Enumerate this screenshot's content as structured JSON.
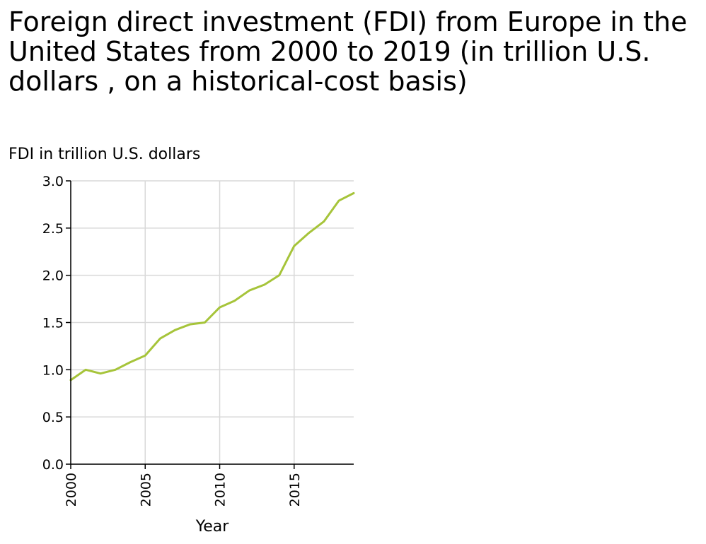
{
  "chart_data": {
    "type": "line",
    "title": "Foreign direct investment (FDI) from Europe in the United States from 2000 to 2019 (in trillion U.S. dollars , on a historical-cost basis)",
    "xlabel": "Year",
    "ylabel": "FDI in trillion U.S. dollars",
    "x": [
      2000,
      2001,
      2002,
      2003,
      2004,
      2005,
      2006,
      2007,
      2008,
      2009,
      2010,
      2011,
      2012,
      2013,
      2014,
      2015,
      2016,
      2017,
      2018,
      2019
    ],
    "series": [
      {
        "values": [
          0.89,
          1.0,
          0.96,
          1.0,
          1.08,
          1.15,
          1.33,
          1.42,
          1.48,
          1.5,
          1.66,
          1.73,
          1.84,
          1.9,
          2.0,
          2.31,
          2.45,
          2.57,
          2.79,
          2.87
        ],
        "color": "#a6c43a"
      }
    ],
    "xlim": [
      2000,
      2019
    ],
    "ylim": [
      0,
      3.0
    ],
    "xticks": [
      "2000",
      "2005",
      "2010",
      "2015"
    ],
    "yticks": [
      "0.0",
      "0.5",
      "1.0",
      "1.5",
      "2.0",
      "2.5",
      "3.0"
    ],
    "grid": true,
    "colors": {
      "grid": "#d9d9d9",
      "axis": "#000000"
    }
  }
}
